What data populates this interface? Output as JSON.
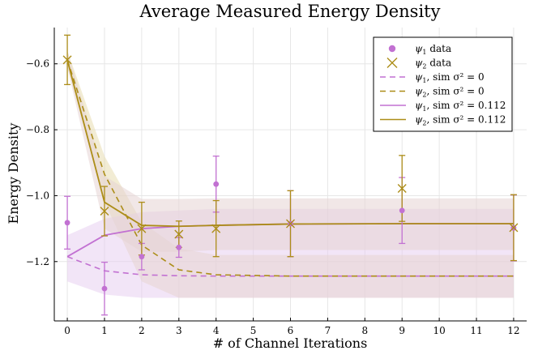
{
  "chart_data": {
    "type": "scatter",
    "title": "Average Measured Energy Density",
    "xlabel": "# of Channel Iterations",
    "ylabel": "Energy Density",
    "xlim": [
      -0.35,
      12.35
    ],
    "ylim": [
      -1.38,
      -0.49
    ],
    "xticks": [
      0,
      1,
      2,
      3,
      4,
      5,
      6,
      7,
      8,
      9,
      10,
      11,
      12
    ],
    "xtick_labels": [
      "0",
      "1",
      "2",
      "3",
      "4",
      "5",
      "6",
      "7",
      "8",
      "9",
      "10",
      "11",
      "12"
    ],
    "yticks": [
      -1.2,
      -1.0,
      -0.8,
      -0.6
    ],
    "ytick_labels": [
      "−1.2",
      "−1.0",
      "−0.8",
      "−0.6"
    ],
    "grid": true,
    "legend_position": "top-right",
    "colors": {
      "psi1": "#c271d2",
      "psi2": "#ac8d18",
      "band_psi2_sim0": "#e8dcb0",
      "band_psi1_sim": "#e6ccf0",
      "band_overlap": "#e5d3d3"
    },
    "series": [
      {
        "name": "ψ₁ data",
        "label_main": "ψ",
        "label_sub": "1",
        "label_rest": " data",
        "kind": "scatter-circle",
        "color": "#c271d2",
        "x": [
          0,
          1,
          2,
          3,
          4,
          6,
          9,
          12
        ],
        "y": [
          -1.082,
          -1.282,
          -1.185,
          -1.157,
          -0.965,
          -1.085,
          -1.045,
          -1.098
        ],
        "yerr": [
          0.08,
          0.08,
          0.04,
          0.03,
          0.085,
          0.1,
          0.1,
          0.1
        ]
      },
      {
        "name": "ψ₂ data",
        "label_main": "ψ",
        "label_sub": "2",
        "label_rest": " data",
        "kind": "scatter-cross",
        "color": "#ac8d18",
        "x": [
          0,
          1,
          2,
          3,
          4,
          6,
          9,
          12
        ],
        "y": [
          -0.588,
          -1.047,
          -1.1,
          -1.117,
          -1.1,
          -1.085,
          -0.978,
          -1.097
        ],
        "yerr": [
          0.075,
          0.075,
          0.08,
          0.04,
          0.085,
          0.1,
          0.1,
          0.1
        ]
      },
      {
        "name": "ψ₁, sim σ² = 0",
        "label_main": "ψ",
        "label_sub": "1",
        "label_rest": ", sim σ² = 0",
        "kind": "dashed",
        "color": "#c271d2",
        "x": [
          0,
          1,
          2,
          3,
          4,
          6,
          9,
          12
        ],
        "y": [
          -1.185,
          -1.228,
          -1.24,
          -1.243,
          -1.244,
          -1.244,
          -1.244,
          -1.244
        ]
      },
      {
        "name": "ψ₂, sim σ² = 0",
        "label_main": "ψ",
        "label_sub": "2",
        "label_rest": ", sim σ² = 0",
        "kind": "dashed",
        "color": "#ac8d18",
        "x": [
          0,
          1,
          2,
          3,
          4,
          6,
          9,
          12
        ],
        "y": [
          -0.588,
          -0.935,
          -1.15,
          -1.225,
          -1.24,
          -1.244,
          -1.244,
          -1.244
        ],
        "band_upper": [
          -0.56,
          -0.88,
          -1.08,
          -1.16,
          -1.18,
          -1.18,
          -1.18,
          -1.18
        ],
        "band_lower": [
          -0.61,
          -1.02,
          -1.26,
          -1.31,
          -1.31,
          -1.31,
          -1.31,
          -1.31
        ]
      },
      {
        "name": "ψ₁, sim σ² = 0.112",
        "label_main": "ψ",
        "label_sub": "1",
        "label_rest": ", sim σ² = 0.112",
        "kind": "solid",
        "color": "#c271d2",
        "x": [
          0,
          1,
          2,
          3,
          4,
          6,
          9,
          12
        ],
        "y": [
          -1.185,
          -1.12,
          -1.1,
          -1.093,
          -1.09,
          -1.086,
          -1.085,
          -1.085
        ],
        "band_upper": [
          -1.12,
          -1.07,
          -1.05,
          -1.045,
          -1.04,
          -1.04,
          -1.04,
          -1.04
        ],
        "band_lower": [
          -1.26,
          -1.3,
          -1.31,
          -1.31,
          -1.31,
          -1.31,
          -1.31,
          -1.31
        ]
      },
      {
        "name": "ψ₂, sim σ² = 0.112",
        "label_main": "ψ",
        "label_sub": "2",
        "label_rest": ", sim σ² = 0.112",
        "kind": "solid",
        "color": "#ac8d18",
        "x": [
          0,
          1,
          2,
          3,
          4,
          6,
          9,
          12
        ],
        "y": [
          -0.588,
          -1.02,
          -1.09,
          -1.093,
          -1.09,
          -1.086,
          -1.085,
          -1.085
        ],
        "band_upper": [
          -0.56,
          -0.94,
          -1.01,
          -1.01,
          -1.008,
          -1.008,
          -1.008,
          -1.008
        ],
        "band_lower": [
          -0.61,
          -1.1,
          -1.17,
          -1.17,
          -1.165,
          -1.165,
          -1.165,
          -1.165
        ]
      }
    ]
  }
}
